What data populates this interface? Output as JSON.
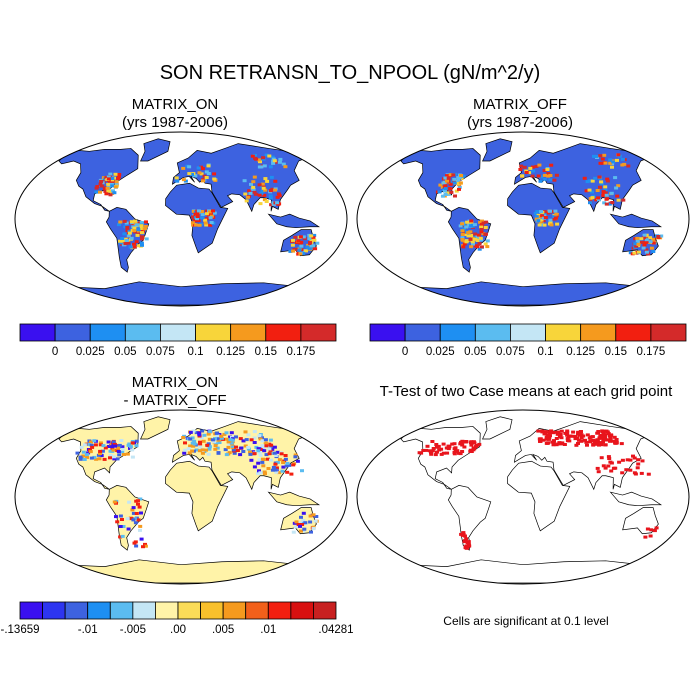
{
  "title": "SON RETRANSN_TO_NPOOL (gN/m^2/y)",
  "panels": {
    "matrix_on": {
      "line1": "MATRIX_ON",
      "line2": "(yrs 1987-2006)"
    },
    "matrix_off": {
      "line1": "MATRIX_OFF",
      "line2": "(yrs 1987-2006)"
    },
    "difference": {
      "line1": "MATRIX_ON",
      "line2": "- MATRIX_OFF"
    },
    "ttest": {
      "title": "T-Test of two Case means at each grid point",
      "note": "Cells are significant at 0.1 level"
    }
  },
  "colorbar_main": {
    "colors": [
      "#3a10f0",
      "#3d62e0",
      "#1e8ff2",
      "#5bbcf0",
      "#c4e6f5",
      "#f8d53a",
      "#f59a1e",
      "#f21f10",
      "#d42a2a"
    ],
    "labels": [
      "0",
      "0.025",
      "0.05",
      "0.075",
      "0.1",
      "0.125",
      "0.15",
      "0.175"
    ]
  },
  "colorbar_diff": {
    "colors": [
      "#3a10f0",
      "#2d35f0",
      "#3d62e0",
      "#1e8ff2",
      "#5bbcf0",
      "#c4e6f5",
      "#fff3a8",
      "#fbdc58",
      "#f8c02c",
      "#f59a1e",
      "#f2601a",
      "#f21f10",
      "#d81010",
      "#c82020"
    ],
    "labels": [
      "-.13659",
      "-.01",
      "-.005",
      ".00",
      ".005",
      ".01",
      ".04281"
    ]
  },
  "map_colors": {
    "ocean": "#ffffff",
    "land_base_main": "#3d62e0",
    "land_base_diff": "#fff3a8",
    "significant": "#e8141c",
    "coast": "#000000"
  }
}
